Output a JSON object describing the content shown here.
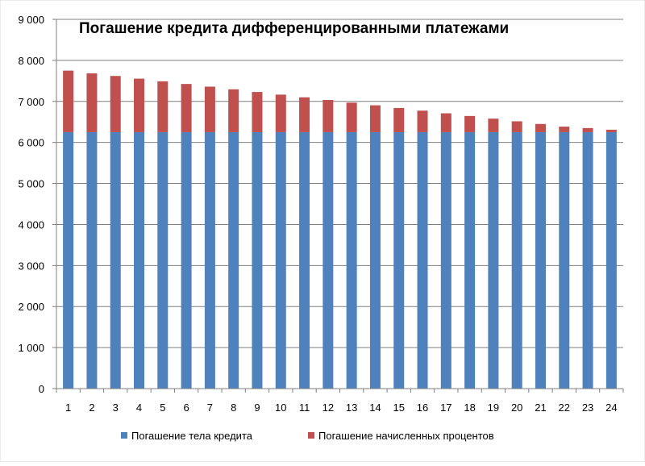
{
  "chart_data": {
    "type": "bar",
    "stacked": true,
    "title": "Погашение кредита дифференцированными платежами",
    "xlabel": "",
    "ylabel": "",
    "ylim": [
      0,
      9000
    ],
    "y_ticks": [
      "0",
      "1 000",
      "2 000",
      "3 000",
      "4 000",
      "5 000",
      "6 000",
      "7 000",
      "8 000",
      "9 000"
    ],
    "grid": true,
    "legend_position": "bottom",
    "categories": [
      "1",
      "2",
      "3",
      "4",
      "5",
      "6",
      "7",
      "8",
      "9",
      "10",
      "11",
      "12",
      "13",
      "14",
      "15",
      "16",
      "17",
      "18",
      "19",
      "20",
      "21",
      "22",
      "23",
      "24"
    ],
    "series": [
      {
        "name": "Погашение тела кредита",
        "color": "#4f81bd",
        "values": [
          6250,
          6250,
          6250,
          6250,
          6250,
          6250,
          6250,
          6250,
          6250,
          6250,
          6250,
          6250,
          6250,
          6250,
          6250,
          6250,
          6250,
          6250,
          6250,
          6250,
          6250,
          6250,
          6250,
          6250
        ]
      },
      {
        "name": "Погашение начисленных процентов",
        "color": "#c0504d",
        "values": [
          1500,
          1435,
          1370,
          1305,
          1240,
          1175,
          1110,
          1045,
          980,
          915,
          850,
          785,
          720,
          655,
          590,
          525,
          460,
          395,
          330,
          265,
          200,
          135,
          100,
          60
        ]
      }
    ]
  }
}
